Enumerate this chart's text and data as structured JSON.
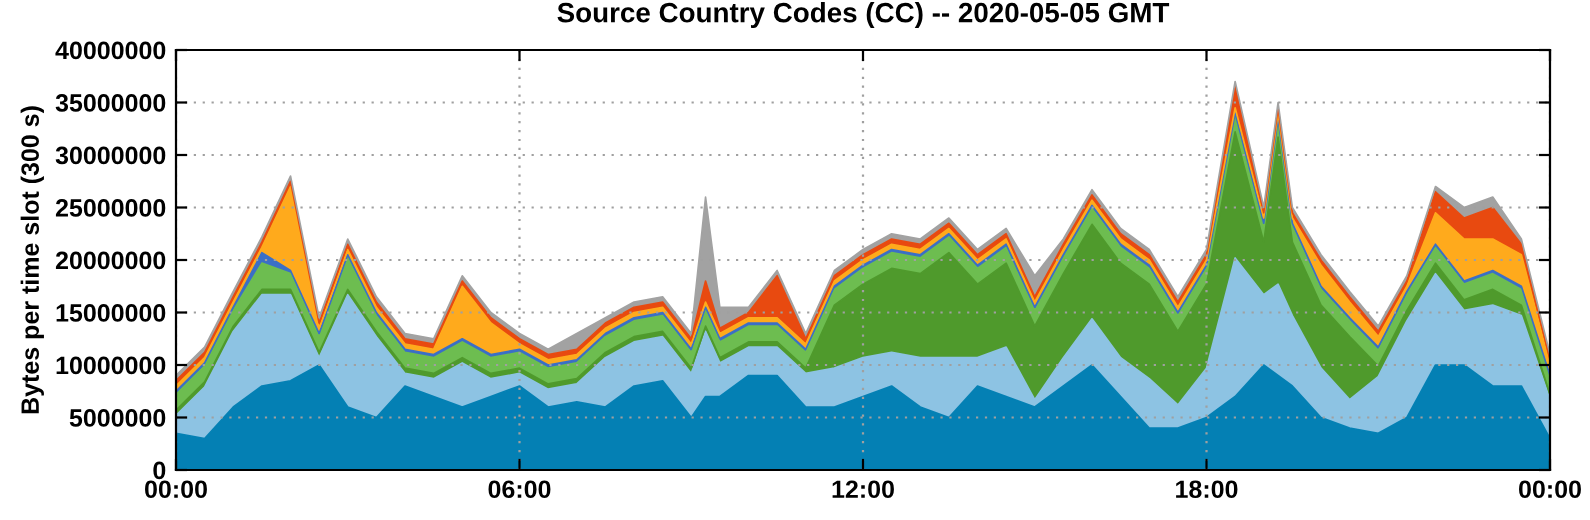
{
  "chart_data": {
    "type": "area",
    "stacked": true,
    "title": "Source Country Codes (CC) -- 2020-05-05 GMT",
    "ylabel": "Bytes per time slot (300 s)",
    "x": [
      0,
      0.5,
      1,
      1.5,
      2,
      2.5,
      3,
      3.5,
      4,
      4.5,
      5,
      5.5,
      6,
      6.5,
      7,
      7.5,
      8,
      8.5,
      9,
      9.25,
      9.5,
      10,
      10.5,
      11,
      11.5,
      12,
      12.5,
      13,
      13.5,
      14,
      14.5,
      15,
      15.5,
      16,
      16.5,
      17,
      17.5,
      18,
      18.5,
      19,
      19.25,
      19.5,
      20,
      20.5,
      21,
      21.5,
      22,
      22.5,
      23,
      23.5,
      24
    ],
    "xlim": [
      0,
      24
    ],
    "xticks": [
      {
        "value": 0,
        "label": "00:00"
      },
      {
        "value": 6,
        "label": "06:00"
      },
      {
        "value": 12,
        "label": "12:00"
      },
      {
        "value": 18,
        "label": "18:00"
      },
      {
        "value": 24,
        "label": "00:00"
      }
    ],
    "ylim": [
      0,
      40000000
    ],
    "yticks": [
      0,
      5000000,
      10000000,
      15000000,
      20000000,
      25000000,
      30000000,
      35000000,
      40000000
    ],
    "grid": true,
    "line_style": "solid",
    "series": [
      {
        "color": "#0480b4",
        "values": [
          3500000,
          3000000,
          6000000,
          8000000,
          8500000,
          10000000,
          6000000,
          5000000,
          8000000,
          7000000,
          6000000,
          7000000,
          8000000,
          6000000,
          6500000,
          6000000,
          8000000,
          8500000,
          5000000,
          7000000,
          7000000,
          9000000,
          9000000,
          6000000,
          6000000,
          7000000,
          8000000,
          6000000,
          5000000,
          8000000,
          7000000,
          6000000,
          8000000,
          10000000,
          7000000,
          4000000,
          4000000,
          5000000,
          7000000,
          10000000,
          9000000,
          8000000,
          5000000,
          4000000,
          3500000,
          5000000,
          10000000,
          10000000,
          8000000,
          8000000,
          3000000
        ]
      },
      {
        "color": "#8dc3e3",
        "values": [
          1700000,
          4900000,
          7200000,
          8700000,
          8200000,
          700000,
          10700000,
          7700000,
          1200000,
          1700000,
          4200000,
          1700000,
          1200000,
          1700000,
          1700000,
          4700000,
          4200000,
          4200000,
          4200000,
          6200000,
          3200000,
          2700000,
          2700000,
          3200000,
          3700000,
          3700000,
          3200000,
          4700000,
          5700000,
          2700000,
          4700000,
          700000,
          2700000,
          4400000,
          3700000,
          4700000,
          2200000,
          4700000,
          13200000,
          6700000,
          8700000,
          6700000,
          4700000,
          2700000,
          5400000,
          9200000,
          8700000,
          5200000,
          7700000,
          6700000,
          3700000
        ]
      },
      {
        "color": "#4f9a2c",
        "values": [
          500000,
          500000,
          500000,
          500000,
          500000,
          500000,
          500000,
          500000,
          500000,
          500000,
          500000,
          500000,
          500000,
          500000,
          500000,
          500000,
          500000,
          500000,
          500000,
          500000,
          500000,
          500000,
          500000,
          500000,
          6000000,
          7000000,
          8000000,
          8000000,
          10000000,
          7000000,
          8000000,
          7000000,
          8000000,
          9000000,
          9000000,
          9000000,
          7000000,
          8000000,
          12000000,
          5000000,
          14000000,
          7000000,
          6000000,
          6000000,
          1000000,
          1000000,
          1000000,
          1000000,
          1500000,
          1000000,
          500000
        ]
      },
      {
        "color": "#6dbd50",
        "values": [
          1500000,
          1500000,
          1500000,
          2500000,
          1500000,
          1500000,
          3000000,
          1500000,
          1500000,
          1500000,
          1500000,
          1500000,
          1500000,
          1500000,
          1500000,
          1500000,
          1500000,
          1500000,
          1500000,
          1500000,
          1500000,
          1500000,
          1500000,
          1500000,
          1500000,
          1500000,
          1500000,
          1500000,
          1500000,
          1500000,
          1500000,
          1500000,
          1500000,
          1500000,
          1500000,
          1500000,
          1500000,
          1500000,
          1500000,
          1500000,
          1500000,
          1500000,
          1500000,
          1500000,
          1500000,
          1500000,
          1500000,
          1500000,
          1500000,
          1500000,
          1500000
        ]
      },
      {
        "color": "#3b6fc6",
        "values": [
          300000,
          300000,
          300000,
          1000000,
          300000,
          300000,
          300000,
          300000,
          300000,
          300000,
          300000,
          300000,
          300000,
          300000,
          300000,
          300000,
          300000,
          300000,
          300000,
          300000,
          300000,
          300000,
          300000,
          300000,
          300000,
          300000,
          300000,
          300000,
          300000,
          300000,
          300000,
          300000,
          300000,
          300000,
          300000,
          300000,
          300000,
          300000,
          300000,
          300000,
          300000,
          300000,
          300000,
          300000,
          300000,
          300000,
          300000,
          300000,
          300000,
          300000,
          300000
        ]
      },
      {
        "color": "#ffaa1c",
        "values": [
          500000,
          500000,
          500000,
          500000,
          8000000,
          500000,
          500000,
          500000,
          500000,
          500000,
          5000000,
          3000000,
          500000,
          500000,
          500000,
          500000,
          500000,
          500000,
          500000,
          500000,
          500000,
          500000,
          500000,
          500000,
          500000,
          500000,
          500000,
          500000,
          500000,
          500000,
          500000,
          500000,
          500000,
          500000,
          500000,
          500000,
          500000,
          500000,
          500000,
          500000,
          500000,
          500000,
          2000000,
          1500000,
          1000000,
          500000,
          3000000,
          4000000,
          3000000,
          3000000,
          1000000
        ]
      },
      {
        "color": "#e84a10",
        "values": [
          500000,
          500000,
          500000,
          500000,
          500000,
          500000,
          500000,
          500000,
          500000,
          500000,
          500000,
          500000,
          500000,
          500000,
          500000,
          500000,
          500000,
          500000,
          500000,
          2000000,
          500000,
          500000,
          4000000,
          500000,
          500000,
          500000,
          500000,
          500000,
          500000,
          500000,
          500000,
          500000,
          500000,
          500000,
          500000,
          500000,
          500000,
          500000,
          2000000,
          500000,
          500000,
          500000,
          500000,
          500000,
          500000,
          500000,
          2000000,
          2000000,
          3000000,
          1000000,
          500000
        ]
      },
      {
        "color": "#a2a2a2",
        "values": [
          500000,
          500000,
          500000,
          500000,
          500000,
          500000,
          500000,
          500000,
          500000,
          500000,
          500000,
          500000,
          500000,
          500000,
          1500000,
          500000,
          500000,
          500000,
          500000,
          8000000,
          2000000,
          500000,
          500000,
          500000,
          500000,
          500000,
          500000,
          500000,
          500000,
          500000,
          500000,
          2000000,
          500000,
          500000,
          500000,
          500000,
          500000,
          500000,
          500000,
          500000,
          500000,
          500000,
          500000,
          500000,
          500000,
          500000,
          500000,
          1000000,
          1000000,
          500000,
          500000
        ]
      }
    ]
  }
}
